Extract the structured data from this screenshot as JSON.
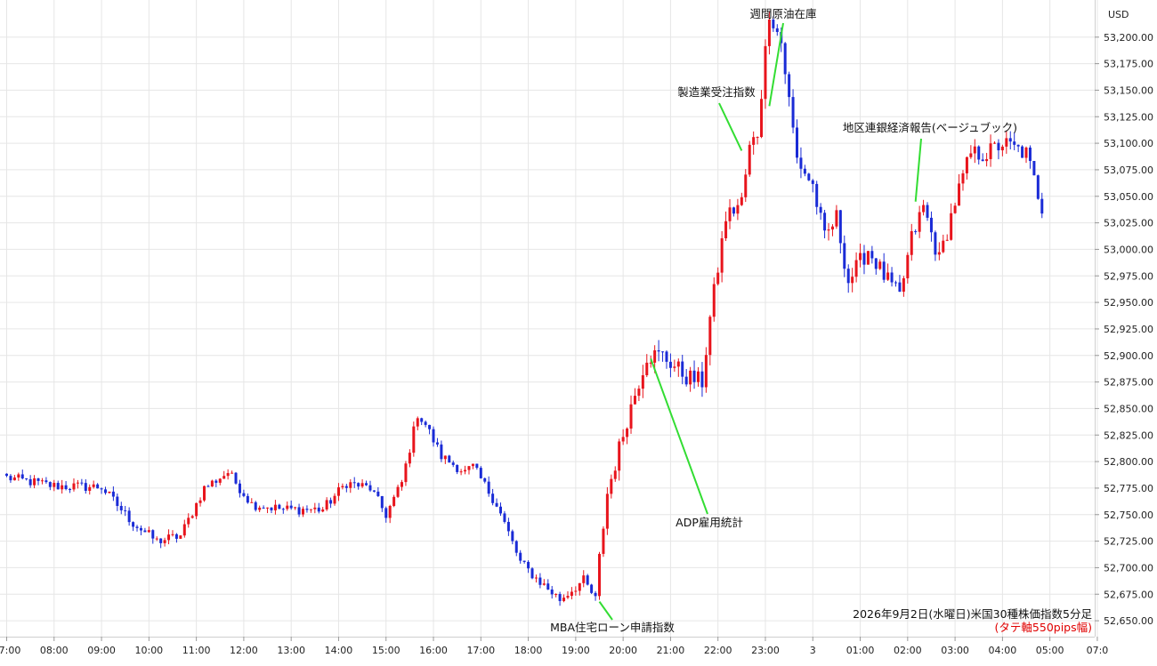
{
  "chart_data": {
    "type": "candlestick",
    "currency": "USD",
    "title": "2026年9月2日(水曜日)米国30種株価指数5分足",
    "subtitle": "(タテ軸550pips幅)",
    "ylim": [
      52635,
      53235
    ],
    "y_ticks": [
      "52,650.00",
      "52,675.00",
      "52,700.00",
      "52,725.00",
      "52,750.00",
      "52,775.00",
      "52,800.00",
      "52,825.00",
      "52,850.00",
      "52,875.00",
      "52,900.00",
      "52,925.00",
      "52,950.00",
      "52,975.00",
      "53,000.00",
      "53,025.00",
      "53,050.00",
      "53,075.00",
      "53,100.00",
      "53,125.00",
      "53,150.00",
      "53,175.00",
      "53,200.00"
    ],
    "x_ticks": [
      "07:00",
      "08:00",
      "09:00",
      "10:00",
      "11:00",
      "12:00",
      "13:00",
      "14:00",
      "15:00",
      "16:00",
      "17:00",
      "18:00",
      "19:00",
      "20:00",
      "21:00",
      "22:00",
      "23:00",
      "3",
      "01:00",
      "02:00",
      "03:00",
      "04:00",
      "05:00",
      "07:0"
    ],
    "colors": {
      "up": "#e8141c",
      "down": "#1a2bd6",
      "grid": "#e6e6e6",
      "annotation_line": "#33dd33"
    },
    "annotations": [
      {
        "label": "週間原油在庫",
        "time_index": 193,
        "price": 53135
      },
      {
        "label": "製造業受注指数",
        "time_index": 186,
        "price": 53093
      },
      {
        "label": "地区連銀経済報告(ベージュブック)",
        "time_index": 230,
        "price": 53045
      },
      {
        "label": "ADP雇用統計",
        "time_index": 163,
        "price": 52897
      },
      {
        "label": "MBA住宅ローン申請指数",
        "time_index": 150,
        "price": 52668
      }
    ],
    "anchors": [
      [
        0,
        52785
      ],
      [
        12,
        52777
      ],
      [
        24,
        52776
      ],
      [
        32,
        52742
      ],
      [
        38,
        52725
      ],
      [
        44,
        52730
      ],
      [
        50,
        52775
      ],
      [
        56,
        52790
      ],
      [
        62,
        52760
      ],
      [
        70,
        52755
      ],
      [
        80,
        52755
      ],
      [
        86,
        52780
      ],
      [
        92,
        52775
      ],
      [
        96,
        52750
      ],
      [
        100,
        52780
      ],
      [
        104,
        52845
      ],
      [
        106,
        52835
      ],
      [
        110,
        52805
      ],
      [
        116,
        52790
      ],
      [
        118,
        52795
      ],
      [
        124,
        52760
      ],
      [
        130,
        52705
      ],
      [
        134,
        52690
      ],
      [
        140,
        52670
      ],
      [
        146,
        52688
      ],
      [
        149,
        52670
      ],
      [
        150,
        52710
      ],
      [
        152,
        52770
      ],
      [
        157,
        52840
      ],
      [
        162,
        52900
      ],
      [
        166,
        52900
      ],
      [
        172,
        52880
      ],
      [
        176,
        52875
      ],
      [
        178,
        52935
      ],
      [
        182,
        53030
      ],
      [
        186,
        53045
      ],
      [
        188,
        53095
      ],
      [
        190,
        53110
      ],
      [
        193,
        53225
      ],
      [
        196,
        53195
      ],
      [
        200,
        53085
      ],
      [
        204,
        53060
      ],
      [
        207,
        53010
      ],
      [
        210,
        53030
      ],
      [
        213,
        52970
      ],
      [
        218,
        53000
      ],
      [
        222,
        52975
      ],
      [
        226,
        52955
      ],
      [
        229,
        53010
      ],
      [
        232,
        53040
      ],
      [
        236,
        52990
      ],
      [
        240,
        53045
      ],
      [
        244,
        53090
      ],
      [
        248,
        53090
      ],
      [
        252,
        53100
      ],
      [
        258,
        53090
      ],
      [
        262,
        53040
      ]
    ]
  }
}
